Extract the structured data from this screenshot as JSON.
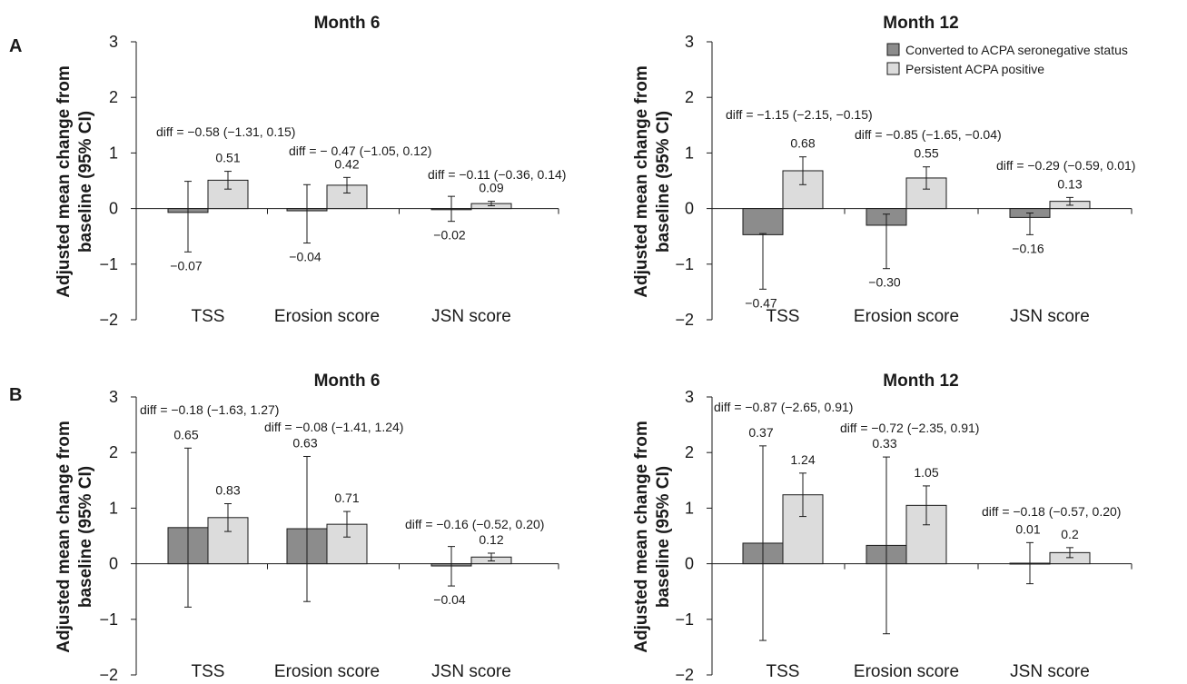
{
  "panel_labels": [
    "A",
    "B"
  ],
  "legend": {
    "items": [
      {
        "label": "Converted to ACPA seronegative status",
        "color": "#8c8c8c"
      },
      {
        "label": "Persistent ACPA positive",
        "color": "#dcdcdc"
      }
    ]
  },
  "chart_data": [
    {
      "type": "bar",
      "panel": "A",
      "title": "Month 6",
      "ylabel": "Adjusted mean change from baseline (95% CI)",
      "ylim": [
        -2,
        3
      ],
      "yticks": [
        "3",
        "2",
        "1",
        "0",
        "−1",
        "−2"
      ],
      "categories": [
        "TSS",
        "Erosion score",
        "JSN score"
      ],
      "series": [
        {
          "name": "Converted to ACPA seronegative status",
          "color": "#8c8c8c",
          "values": [
            -0.07,
            -0.04,
            -0.02
          ],
          "labels": [
            "−0.07",
            "−0.04",
            "−0.02"
          ],
          "ci": [
            [
              -0.78,
              0.49
            ],
            [
              -0.62,
              0.43
            ],
            [
              -0.23,
              0.22
            ]
          ]
        },
        {
          "name": "Persistent ACPA positive",
          "color": "#dcdcdc",
          "values": [
            0.51,
            0.42,
            0.09
          ],
          "labels": [
            "0.51",
            "0.42",
            "0.09"
          ],
          "ci": [
            [
              0.35,
              0.67
            ],
            [
              0.28,
              0.56
            ],
            [
              0.05,
              0.13
            ]
          ]
        }
      ],
      "annotations": [
        "diff = −0.58 (−1.31, 0.15)",
        "diff = − 0.47 (−1.05, 0.12)",
        "diff = −0.11 (−0.36, 0.14)"
      ]
    },
    {
      "type": "bar",
      "panel": "A",
      "title": "Month 12",
      "ylabel": "Adjusted mean change from baseline (95% CI)",
      "ylim": [
        -2,
        3
      ],
      "yticks": [
        "3",
        "2",
        "1",
        "0",
        "−1",
        "−2"
      ],
      "categories": [
        "TSS",
        "Erosion score",
        "JSN score"
      ],
      "series": [
        {
          "name": "Converted to ACPA seronegative status",
          "color": "#8c8c8c",
          "values": [
            -0.47,
            -0.3,
            -0.16
          ],
          "labels": [
            "−0.47",
            "−0.30",
            "−0.16"
          ],
          "ci": [
            [
              -1.45,
              -0.45
            ],
            [
              -1.08,
              -0.1
            ],
            [
              -0.47,
              -0.08
            ]
          ]
        },
        {
          "name": "Persistent ACPA positive",
          "color": "#dcdcdc",
          "values": [
            0.68,
            0.55,
            0.13
          ],
          "labels": [
            "0.68",
            "0.55",
            "0.13"
          ],
          "ci": [
            [
              0.43,
              0.93
            ],
            [
              0.35,
              0.75
            ],
            [
              0.06,
              0.2
            ]
          ]
        }
      ],
      "annotations": [
        "diff = −1.15 (−2.15, −0.15)",
        "diff = −0.85 (−1.65, −0.04)",
        "diff = −0.29 (−0.59, 0.01)"
      ]
    },
    {
      "type": "bar",
      "panel": "B",
      "title": "Month 6",
      "ylabel": "Adjusted mean change from baseline (95% CI)",
      "ylim": [
        -2,
        3
      ],
      "yticks": [
        "3",
        "2",
        "1",
        "0",
        "−1",
        "−2"
      ],
      "categories": [
        "TSS",
        "Erosion score",
        "JSN score"
      ],
      "series": [
        {
          "name": "Converted to ACPA seronegative status",
          "color": "#8c8c8c",
          "values": [
            0.65,
            0.63,
            -0.04
          ],
          "labels": [
            "0.65",
            "0.63",
            "−0.04"
          ],
          "ci": [
            [
              -0.78,
              2.08
            ],
            [
              -0.68,
              1.93
            ],
            [
              -0.4,
              0.31
            ]
          ]
        },
        {
          "name": "Persistent ACPA positive",
          "color": "#dcdcdc",
          "values": [
            0.83,
            0.71,
            0.12
          ],
          "labels": [
            "0.83",
            "0.71",
            "0.12"
          ],
          "ci": [
            [
              0.58,
              1.08
            ],
            [
              0.48,
              0.94
            ],
            [
              0.05,
              0.19
            ]
          ]
        }
      ],
      "annotations": [
        "diff = −0.18 (−1.63, 1.27)",
        "diff = −0.08 (−1.41, 1.24)",
        "diff = −0.16 (−0.52, 0.20)"
      ]
    },
    {
      "type": "bar",
      "panel": "B",
      "title": "Month 12",
      "ylabel": "Adjusted mean change from baseline (95% CI)",
      "ylim": [
        -2,
        3
      ],
      "yticks": [
        "3",
        "2",
        "1",
        "0",
        "−1",
        "−2"
      ],
      "categories": [
        "TSS",
        "Erosion score",
        "JSN score"
      ],
      "series": [
        {
          "name": "Converted to ACPA seronegative status",
          "color": "#8c8c8c",
          "values": [
            0.37,
            0.33,
            0.01
          ],
          "labels": [
            "0.37",
            "0.33",
            "0.01"
          ],
          "ci": [
            [
              -1.38,
              2.12
            ],
            [
              -1.26,
              1.92
            ],
            [
              -0.36,
              0.38
            ]
          ]
        },
        {
          "name": "Persistent ACPA positive",
          "color": "#dcdcdc",
          "values": [
            1.24,
            1.05,
            0.2
          ],
          "labels": [
            "1.24",
            "1.05",
            "0.2"
          ],
          "ci": [
            [
              0.85,
              1.63
            ],
            [
              0.7,
              1.4
            ],
            [
              0.11,
              0.29
            ]
          ]
        }
      ],
      "annotations": [
        "diff = −0.87 (−2.65, 0.91)",
        "diff = −0.72 (−2.35, 0.91)",
        "diff = −0.18 (−0.57, 0.20)"
      ]
    }
  ]
}
